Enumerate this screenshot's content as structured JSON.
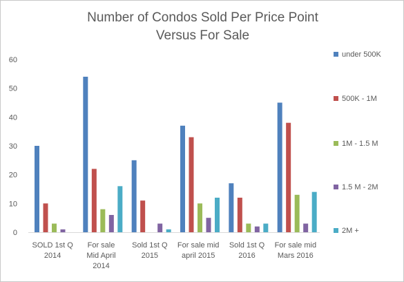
{
  "chart_data": {
    "type": "bar",
    "title_lines": [
      "Number of Condos Sold Per Price Point",
      "Versus For Sale"
    ],
    "categories": [
      [
        "SOLD 1st Q",
        "2014"
      ],
      [
        "For sale",
        "Mid April",
        "2014"
      ],
      [
        "Sold 1st Q",
        "2015"
      ],
      [
        "For sale mid",
        "april 2015"
      ],
      [
        "Sold 1st Q",
        "2016"
      ],
      [
        "For sale mid",
        "Mars 2016"
      ]
    ],
    "series": [
      {
        "name": "under 500K",
        "color": "#4f81bd",
        "values": [
          30,
          54,
          25,
          37,
          17,
          45
        ]
      },
      {
        "name": "500K - 1M",
        "color": "#c0504d",
        "values": [
          10,
          22,
          11,
          33,
          12,
          38
        ]
      },
      {
        "name": "1M - 1.5 M",
        "color": "#9bbb59",
        "values": [
          3,
          8,
          0,
          10,
          3,
          13
        ]
      },
      {
        "name": "1.5 M - 2M",
        "color": "#8064a2",
        "values": [
          1,
          6,
          3,
          5,
          2,
          3
        ]
      },
      {
        "name": "2M +",
        "color": "#4bacc6",
        "values": [
          0,
          16,
          1,
          12,
          3,
          14
        ]
      }
    ],
    "ylim": [
      0,
      60
    ],
    "yticks": [
      0,
      10,
      20,
      30,
      40,
      50,
      60
    ],
    "grid": false,
    "legend": "right"
  }
}
